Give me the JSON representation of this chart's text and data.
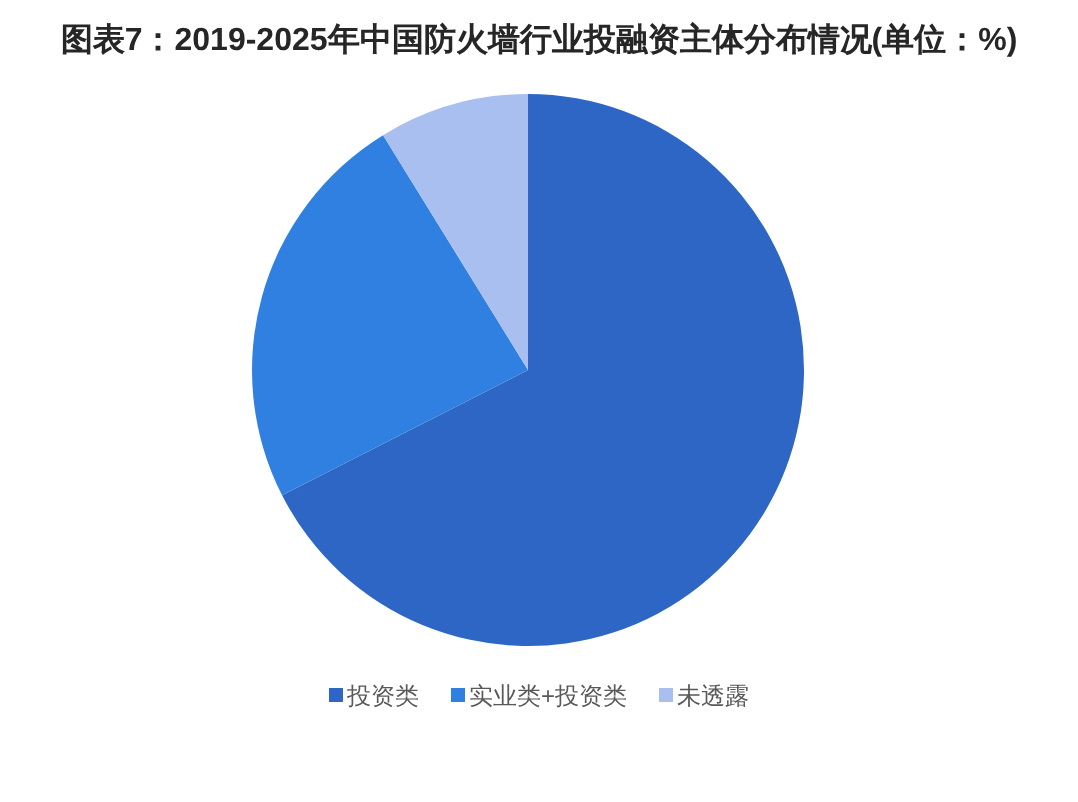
{
  "chart_data": {
    "type": "pie",
    "title": "图表7：2019-2025年中国防火墙行业投融资主体分布情况(单位：%)",
    "categories": [
      "投资类",
      "实业类+投资类",
      "未透露"
    ],
    "values": [
      67.5,
      23.7,
      8.8
    ],
    "colors": [
      "#2d66c4",
      "#2f80e0",
      "#a9bff0"
    ],
    "legend": "bottom"
  }
}
